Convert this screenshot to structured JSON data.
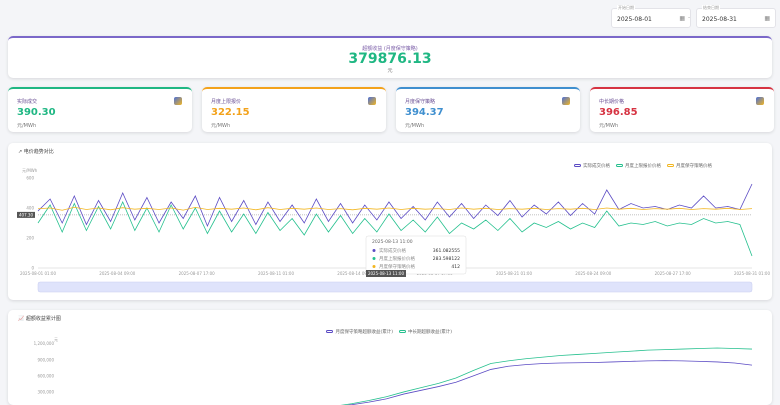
{
  "filters": {
    "start_label": "开始日期",
    "start_value": "2025-08-01",
    "end_label": "结束日期",
    "end_value": "2025-08-31",
    "calendar_icon": "calendar-icon"
  },
  "hero": {
    "title": "超额收益 (月度保守策略)",
    "value": "379876.13",
    "unit": "元"
  },
  "kpis": [
    {
      "label": "实际成交",
      "value": "390.30",
      "unit": "元/MWh",
      "color": "#1fb783",
      "icon": "sun-icon"
    },
    {
      "label": "月度上限报价",
      "value": "322.15",
      "unit": "元/MWh",
      "color": "#f3a21b",
      "icon": "document-icon"
    },
    {
      "label": "月度保守策略",
      "value": "394.37",
      "unit": "元/MWh",
      "color": "#3f8fcf",
      "icon": "form-icon"
    },
    {
      "label": "中长期价格",
      "value": "396.85",
      "unit": "元/MWh",
      "color": "#d63342",
      "icon": "grid-icon"
    }
  ],
  "chart_data": [
    {
      "type": "line",
      "title": "电价趋势对比",
      "ylabel": "元/MWh",
      "ylim": [
        0,
        600
      ],
      "yticks": [
        "0",
        "200",
        "400",
        "600"
      ],
      "pointer_value": "407.30",
      "xticks": [
        "2025-08-01 01:00",
        "2025-08-04 09:00",
        "2025-08-07 17:00",
        "2025-08-11 01:00",
        "2025-08-14 09:00",
        "2025-08-17 17:00",
        "2025-08-21 01:00",
        "2025-08-24 09:00",
        "2025-08-27 17:00",
        "2025-08-31 01:00"
      ],
      "pointer_x_label": "2025-08-13 11:00",
      "legend_position": "top-right",
      "series": [
        {
          "name": "实际成交价格",
          "color": "#5b4bc4",
          "values": [
            380,
            460,
            300,
            480,
            290,
            450,
            310,
            500,
            320,
            470,
            300,
            440,
            330,
            480,
            280,
            470,
            310,
            450,
            290,
            440,
            310,
            420,
            300,
            460,
            310,
            430,
            300,
            420,
            320,
            440,
            330,
            410,
            320,
            440,
            340,
            430,
            330,
            420,
            350,
            450,
            340,
            420,
            360,
            440,
            350,
            430,
            360,
            520,
            390,
            430,
            400,
            410,
            390,
            420,
            400,
            480,
            400,
            410,
            390,
            560
          ]
        },
        {
          "name": "月度上限报价价格",
          "color": "#25c08e",
          "values": [
            300,
            420,
            240,
            430,
            250,
            410,
            260,
            440,
            250,
            400,
            240,
            420,
            260,
            400,
            230,
            380,
            240,
            360,
            230,
            370,
            250,
            330,
            220,
            360,
            240,
            350,
            230,
            330,
            240,
            360,
            250,
            320,
            240,
            340,
            230,
            300,
            260,
            320,
            250,
            330,
            240,
            300,
            270,
            310,
            260,
            300,
            270,
            380,
            280,
            300,
            290,
            310,
            280,
            300,
            290,
            330,
            300,
            310,
            290,
            80
          ]
        },
        {
          "name": "月度保守策略价格",
          "color": "#f2b620",
          "values": [
            395,
            400,
            385,
            405,
            390,
            400,
            388,
            402,
            392,
            398,
            390,
            400,
            386,
            404,
            390,
            398,
            392,
            400,
            388,
            402,
            390,
            398,
            392,
            400,
            390,
            396,
            388,
            398,
            392,
            400,
            390,
            398,
            392,
            396,
            390,
            400,
            392,
            398,
            390,
            396,
            392,
            398,
            390,
            396,
            392,
            398,
            390,
            400,
            392,
            398,
            390,
            396,
            392,
            398,
            390,
            396,
            392,
            398,
            390,
            396
          ]
        }
      ],
      "tooltip": {
        "time": "2025-08-13 11:00",
        "rows": [
          {
            "name": "实际成交价格",
            "value": "361.082555"
          },
          {
            "name": "月度上限报价价格",
            "value": "283.598122"
          },
          {
            "name": "月度保守策略价格",
            "value": "412"
          }
        ]
      }
    },
    {
      "type": "line",
      "title": "超额收益累计图",
      "ylabel": "元",
      "yticks": [
        "300,000",
        "600,000",
        "900,000",
        "1,200,000"
      ],
      "ylim": [
        0,
        1400000
      ],
      "legend_position": "top-right",
      "series": [
        {
          "name": "月度保守策略超额收益(累计)",
          "color": "#5b4bc4",
          "values": [
            0,
            0,
            0,
            0,
            0,
            0,
            0,
            0,
            0,
            0,
            0,
            0,
            0,
            0,
            0,
            0,
            0,
            20000,
            60000,
            110000,
            170000,
            260000,
            330000,
            400000,
            480000,
            600000,
            720000,
            780000,
            810000,
            830000,
            840000,
            845000,
            850000,
            860000,
            870000,
            880000,
            885000,
            880000,
            870000,
            860000,
            840000,
            800000
          ]
        },
        {
          "name": "中长期超额收益(累计)",
          "color": "#25c08e",
          "values": [
            0,
            0,
            0,
            0,
            0,
            0,
            0,
            0,
            0,
            0,
            0,
            0,
            0,
            0,
            0,
            0,
            0,
            30000,
            80000,
            140000,
            210000,
            300000,
            380000,
            460000,
            560000,
            700000,
            830000,
            880000,
            920000,
            950000,
            980000,
            1000000,
            1020000,
            1040000,
            1060000,
            1080000,
            1090000,
            1100000,
            1110000,
            1120000,
            1110000,
            1100000
          ]
        }
      ]
    }
  ]
}
